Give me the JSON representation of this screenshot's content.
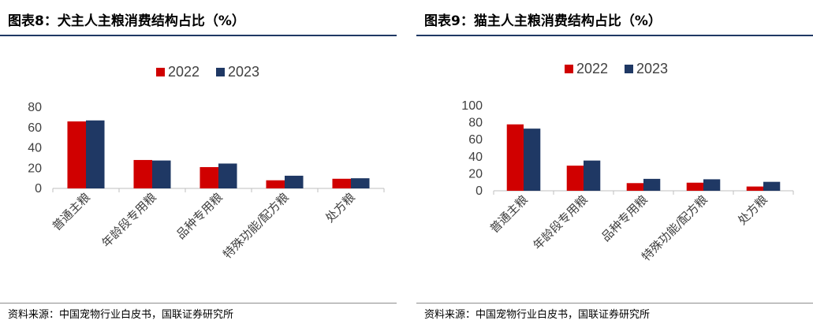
{
  "colors": {
    "s2022": "#d00000",
    "s2023": "#1f3864",
    "title_rule": "#1f3864",
    "axis": "#bfbfbf"
  },
  "panels": [
    {
      "title": "图表8：犬主人主粮消费结构占比（%）",
      "source": "资料来源：中国宠物行业白皮书，国联证券研究所"
    },
    {
      "title": "图表9：猫主人主粮消费结构占比（%）",
      "source": "资料来源：中国宠物行业白皮书，国联证券研究所"
    }
  ],
  "chart_data": [
    {
      "type": "bar",
      "title": "图表8：犬主人主粮消费结构占比（%）",
      "categories": [
        "普通主粮",
        "年龄段专用粮",
        "品种专用粮",
        "特殊功能/配方粮",
        "处方粮"
      ],
      "series": [
        {
          "name": "2022",
          "values": [
            66,
            28,
            21,
            8,
            9.5
          ]
        },
        {
          "name": "2023",
          "values": [
            67,
            27.5,
            24.5,
            12.5,
            10
          ]
        }
      ],
      "ylim": [
        0,
        80
      ],
      "yticks": [
        0,
        20,
        40,
        60,
        80
      ],
      "legend": "top-center",
      "grid": false
    },
    {
      "type": "bar",
      "title": "图表9：猫主人主粮消费结构占比（%）",
      "categories": [
        "普通主粮",
        "年龄段专用粮",
        "品种专用粮",
        "特殊功能/配方粮",
        "处方粮"
      ],
      "series": [
        {
          "name": "2022",
          "values": [
            78,
            29.5,
            9,
            9.5,
            5
          ]
        },
        {
          "name": "2023",
          "values": [
            73,
            35.5,
            14,
            13.5,
            10.5
          ]
        }
      ],
      "ylim": [
        0,
        100
      ],
      "yticks": [
        0,
        20,
        40,
        60,
        80,
        100
      ],
      "legend": "top-center",
      "grid": false
    }
  ]
}
